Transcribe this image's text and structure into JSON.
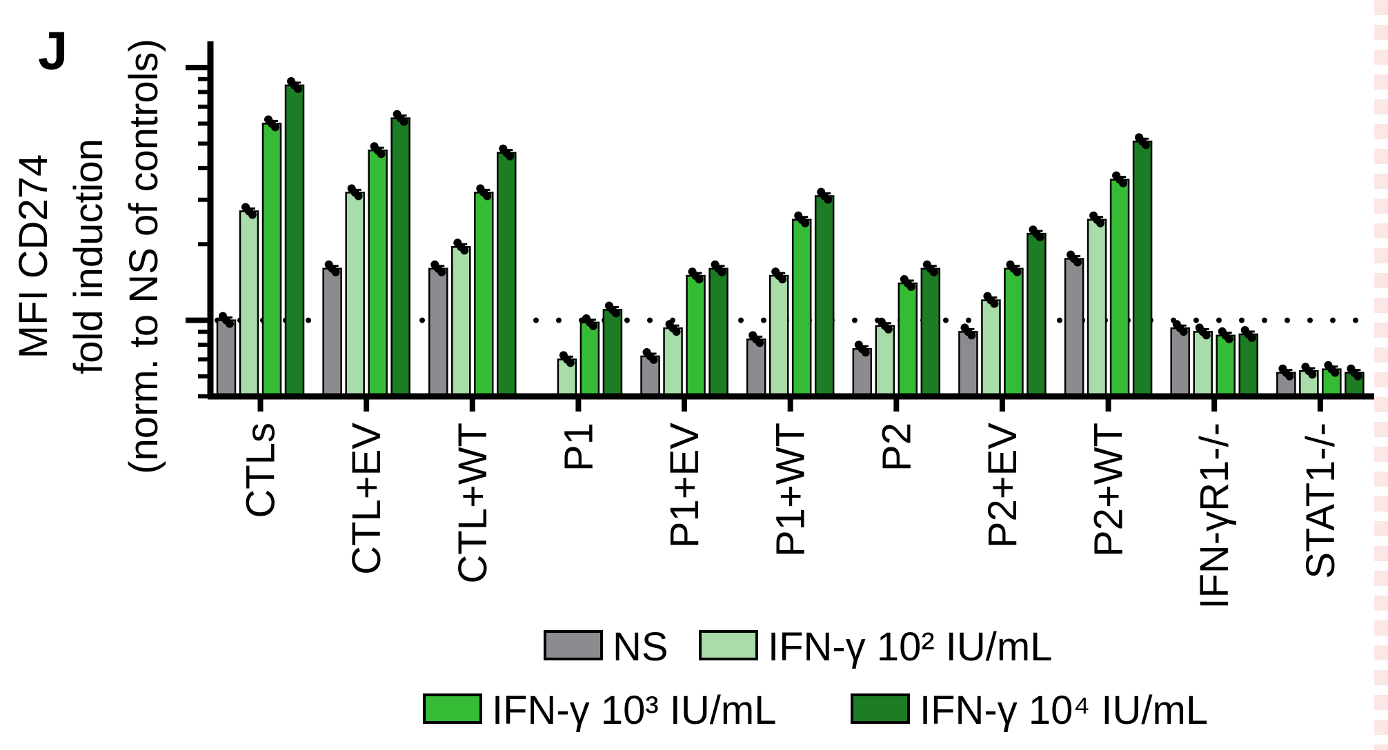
{
  "panel_label": "J",
  "chart_data": {
    "type": "bar",
    "ylabel_line1": "MFI CD274",
    "ylabel_line2": "fold induction",
    "ylabel_line3": "(norm. to NS of controls)",
    "xlabel": "",
    "yscale": "log",
    "ylim": [
      0.5,
      10
    ],
    "reference_line": 1,
    "categories": [
      "CTLs",
      "CTL+EV",
      "CTL+WT",
      "P1",
      "P1+EV",
      "P1+WT",
      "P2",
      "P2+EV",
      "P2+WT",
      "IFN-γR1-/-",
      "STAT1-/-"
    ],
    "series": [
      {
        "name": "NS",
        "color": "#8c8c90",
        "values": [
          1.0,
          1.6,
          1.6,
          null,
          0.72,
          0.84,
          0.77,
          0.9,
          1.75,
          0.93,
          0.62
        ]
      },
      {
        "name": "IFN-γ 10² IU/mL",
        "color": "#a8dca8",
        "values": [
          2.7,
          3.2,
          1.95,
          0.7,
          0.93,
          1.5,
          0.95,
          1.2,
          2.5,
          0.9,
          0.63
        ]
      },
      {
        "name": "IFN-γ 10³ IU/mL",
        "color": "#36bb36",
        "values": [
          6.0,
          4.7,
          3.2,
          0.98,
          1.5,
          2.5,
          1.4,
          1.6,
          3.6,
          0.87,
          0.64
        ]
      },
      {
        "name": "IFN-γ 10⁴ IU/mL",
        "color": "#1d7d24",
        "values": [
          8.5,
          6.3,
          4.6,
          1.1,
          1.6,
          3.1,
          1.6,
          2.2,
          5.1,
          0.88,
          0.62
        ]
      }
    ],
    "legend_position": "bottom",
    "legend": [
      {
        "label": "NS",
        "color": "#8c8c90"
      },
      {
        "label": "IFN-γ 10² IU/mL",
        "color": "#a8dca8"
      },
      {
        "label": "IFN-γ 10³ IU/mL",
        "color": "#36bb36"
      },
      {
        "label": "IFN-γ 10⁴ IU/mL",
        "color": "#1d7d24"
      }
    ]
  }
}
